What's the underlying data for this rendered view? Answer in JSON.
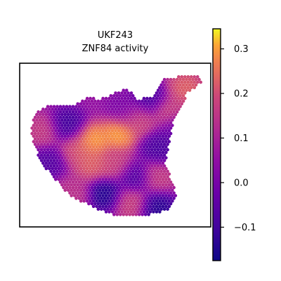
{
  "title_lines": [
    "UKF243",
    "ZNF84 activity"
  ],
  "chart_data": {
    "type": "heatmap",
    "subtype": "spatial-hex-scatter",
    "title": "UKF243\nZNF84 activity",
    "xlabel": "",
    "ylabel": "",
    "colormap": "plasma",
    "clim": [
      -0.175,
      0.345
    ],
    "colorbar_ticks": [
      -0.1,
      0.0,
      0.1,
      0.2,
      0.3
    ],
    "colorbar_tick_labels": [
      "−0.1",
      "0.0",
      "0.1",
      "0.2",
      "0.3"
    ],
    "grid": false,
    "legend": "colorbar-right",
    "hotspots": [
      {
        "x": 0.38,
        "y": 0.47,
        "value": 0.33
      },
      {
        "x": 0.52,
        "y": 0.43,
        "value": 0.33
      },
      {
        "x": 0.38,
        "y": 0.62,
        "value": 0.25
      },
      {
        "x": 0.3,
        "y": 0.53,
        "value": 0.22
      },
      {
        "x": 0.5,
        "y": 0.62,
        "value": 0.2
      },
      {
        "x": 0.62,
        "y": 0.35,
        "value": 0.2
      },
      {
        "x": 0.78,
        "y": 0.3,
        "value": 0.2
      },
      {
        "x": 0.87,
        "y": 0.15,
        "value": 0.25
      },
      {
        "x": 0.12,
        "y": 0.42,
        "value": 0.18
      },
      {
        "x": 0.58,
        "y": 0.85,
        "value": 0.2
      },
      {
        "x": 0.28,
        "y": 0.8,
        "value": 0.15
      },
      {
        "x": 0.72,
        "y": 0.7,
        "value": 0.18
      }
    ],
    "coldspots": [
      {
        "x": 0.45,
        "y": 0.8,
        "value": -0.17
      },
      {
        "x": 0.72,
        "y": 0.88,
        "value": -0.16
      },
      {
        "x": 0.25,
        "y": 0.38,
        "value": -0.12
      },
      {
        "x": 0.73,
        "y": 0.52,
        "value": -0.1
      },
      {
        "x": 0.68,
        "y": 0.22,
        "value": -0.1
      },
      {
        "x": 0.15,
        "y": 0.6,
        "value": -0.08
      },
      {
        "x": 0.6,
        "y": 0.7,
        "value": -0.1
      },
      {
        "x": 0.82,
        "y": 0.4,
        "value": -0.05
      },
      {
        "x": 0.55,
        "y": 0.28,
        "value": 0.0
      }
    ]
  }
}
